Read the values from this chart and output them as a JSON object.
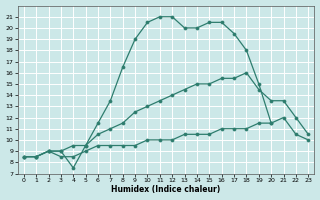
{
  "xlabel": "Humidex (Indice chaleur)",
  "bg_color": "#cce8e8",
  "grid_color": "#ffffff",
  "line_color": "#2e7d6e",
  "xlim": [
    -0.5,
    23.5
  ],
  "ylim": [
    7,
    22
  ],
  "xticks": [
    0,
    1,
    2,
    3,
    4,
    5,
    6,
    7,
    8,
    9,
    10,
    11,
    12,
    13,
    14,
    15,
    16,
    17,
    18,
    19,
    20,
    21,
    22,
    23
  ],
  "yticks": [
    7,
    8,
    9,
    10,
    11,
    12,
    13,
    14,
    15,
    16,
    17,
    18,
    19,
    20,
    21
  ],
  "line_min_x": [
    0,
    1,
    2,
    3,
    4,
    5,
    6,
    7,
    8,
    9,
    10,
    11,
    12,
    13,
    14,
    15,
    16,
    17,
    18,
    19,
    20,
    21,
    22,
    23
  ],
  "line_min_y": [
    8.5,
    8.5,
    9.0,
    8.5,
    8.5,
    9.0,
    9.5,
    9.5,
    9.5,
    9.5,
    10.0,
    10.0,
    10.0,
    10.5,
    10.5,
    10.5,
    11.0,
    11.0,
    11.0,
    11.5,
    11.5,
    12.0,
    10.5,
    10.0
  ],
  "line_mid_x": [
    0,
    1,
    2,
    3,
    4,
    5,
    6,
    7,
    8,
    9,
    10,
    11,
    12,
    13,
    14,
    15,
    16,
    17,
    18,
    19,
    20,
    21,
    22,
    23
  ],
  "line_mid_y": [
    8.5,
    8.5,
    9.0,
    9.0,
    9.5,
    9.5,
    10.5,
    11.0,
    11.5,
    12.5,
    13.0,
    13.5,
    14.0,
    14.5,
    15.0,
    15.0,
    15.5,
    15.5,
    16.0,
    14.5,
    13.5,
    13.5,
    12.0,
    10.5
  ],
  "line_max_x": [
    0,
    1,
    2,
    3,
    4,
    5,
    6,
    7,
    8,
    9,
    10,
    11,
    12,
    13,
    14,
    15,
    16,
    17,
    18,
    19,
    20
  ],
  "line_max_y": [
    8.5,
    8.5,
    9.0,
    9.0,
    7.5,
    9.5,
    11.5,
    13.5,
    16.5,
    19.0,
    20.5,
    21.0,
    21.0,
    20.0,
    20.0,
    20.5,
    20.5,
    19.5,
    18.0,
    15.0,
    11.5
  ]
}
